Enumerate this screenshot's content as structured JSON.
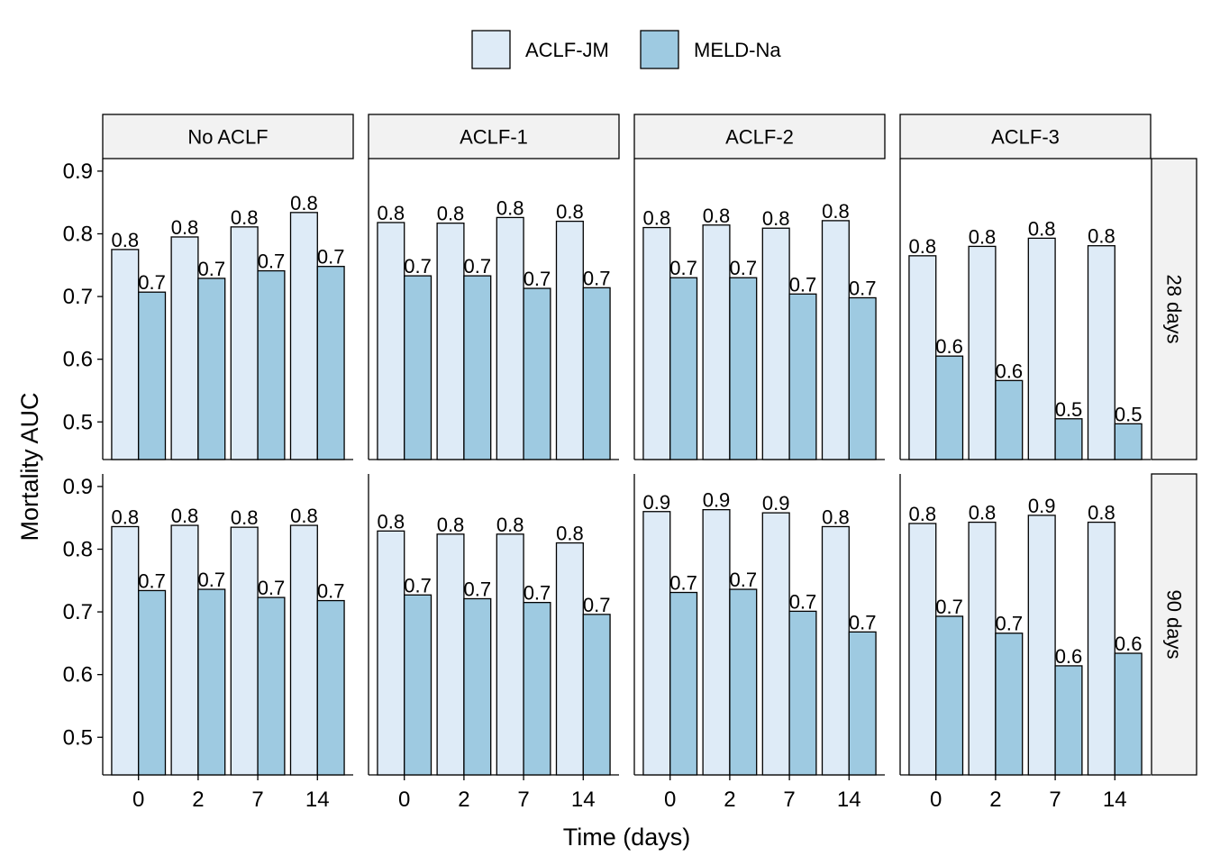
{
  "chart_data": {
    "type": "bar",
    "xlabel": "Time (days)",
    "ylabel": "Mortality AUC",
    "ylim": [
      0.44,
      0.92
    ],
    "yticks": [
      0.5,
      0.6,
      0.7,
      0.8,
      0.9
    ],
    "ytick_labels": [
      "0.5",
      "0.6",
      "0.7",
      "0.8",
      "0.9"
    ],
    "categories": [
      "0",
      "2",
      "7",
      "14"
    ],
    "facet_columns": [
      "No ACLF",
      "ACLF-1",
      "ACLF-2",
      "ACLF-3"
    ],
    "facet_rows": [
      "28 days",
      "90 days"
    ],
    "legend": {
      "position": "top",
      "items": [
        {
          "name": "ACLF-JM",
          "color": "#deebf7"
        },
        {
          "name": "MELD-Na",
          "color": "#9ecae1"
        }
      ]
    },
    "grid": false,
    "panels": [
      {
        "row": "28 days",
        "col": "No ACLF",
        "series": [
          {
            "name": "ACLF-JM",
            "values": [
              0.775,
              0.795,
              0.811,
              0.834
            ],
            "labels": [
              "0.8",
              "0.8",
              "0.8",
              "0.8"
            ]
          },
          {
            "name": "MELD-Na",
            "values": [
              0.707,
              0.729,
              0.741,
              0.748
            ],
            "labels": [
              "0.7",
              "0.7",
              "0.7",
              "0.7"
            ]
          }
        ]
      },
      {
        "row": "28 days",
        "col": "ACLF-1",
        "series": [
          {
            "name": "ACLF-JM",
            "values": [
              0.818,
              0.817,
              0.826,
              0.82
            ],
            "labels": [
              "0.8",
              "0.8",
              "0.8",
              "0.8"
            ]
          },
          {
            "name": "MELD-Na",
            "values": [
              0.733,
              0.733,
              0.713,
              0.714
            ],
            "labels": [
              "0.7",
              "0.7",
              "0.7",
              "0.7"
            ]
          }
        ]
      },
      {
        "row": "28 days",
        "col": "ACLF-2",
        "series": [
          {
            "name": "ACLF-JM",
            "values": [
              0.81,
              0.814,
              0.809,
              0.821
            ],
            "labels": [
              "0.8",
              "0.8",
              "0.8",
              "0.8"
            ]
          },
          {
            "name": "MELD-Na",
            "values": [
              0.73,
              0.73,
              0.704,
              0.698
            ],
            "labels": [
              "0.7",
              "0.7",
              "0.7",
              "0.7"
            ]
          }
        ]
      },
      {
        "row": "28 days",
        "col": "ACLF-3",
        "series": [
          {
            "name": "ACLF-JM",
            "values": [
              0.765,
              0.78,
              0.793,
              0.781
            ],
            "labels": [
              "0.8",
              "0.8",
              "0.8",
              "0.8"
            ]
          },
          {
            "name": "MELD-Na",
            "values": [
              0.605,
              0.566,
              0.505,
              0.497
            ],
            "labels": [
              "0.6",
              "0.6",
              "0.5",
              "0.5"
            ]
          }
        ]
      },
      {
        "row": "90 days",
        "col": "No ACLF",
        "series": [
          {
            "name": "ACLF-JM",
            "values": [
              0.836,
              0.838,
              0.835,
              0.838
            ],
            "labels": [
              "0.8",
              "0.8",
              "0.8",
              "0.8"
            ]
          },
          {
            "name": "MELD-Na",
            "values": [
              0.734,
              0.736,
              0.723,
              0.718
            ],
            "labels": [
              "0.7",
              "0.7",
              "0.7",
              "0.7"
            ]
          }
        ]
      },
      {
        "row": "90 days",
        "col": "ACLF-1",
        "series": [
          {
            "name": "ACLF-JM",
            "values": [
              0.829,
              0.824,
              0.824,
              0.81
            ],
            "labels": [
              "0.8",
              "0.8",
              "0.8",
              "0.8"
            ]
          },
          {
            "name": "MELD-Na",
            "values": [
              0.727,
              0.721,
              0.715,
              0.696
            ],
            "labels": [
              "0.7",
              "0.7",
              "0.7",
              "0.7"
            ]
          }
        ]
      },
      {
        "row": "90 days",
        "col": "ACLF-2",
        "series": [
          {
            "name": "ACLF-JM",
            "values": [
              0.86,
              0.863,
              0.858,
              0.836
            ],
            "labels": [
              "0.9",
              "0.9",
              "0.9",
              "0.8"
            ]
          },
          {
            "name": "MELD-Na",
            "values": [
              0.731,
              0.736,
              0.701,
              0.668
            ],
            "labels": [
              "0.7",
              "0.7",
              "0.7",
              "0.7"
            ]
          }
        ]
      },
      {
        "row": "90 days",
        "col": "ACLF-3",
        "series": [
          {
            "name": "ACLF-JM",
            "values": [
              0.841,
              0.843,
              0.854,
              0.843
            ],
            "labels": [
              "0.8",
              "0.8",
              "0.9",
              "0.8"
            ]
          },
          {
            "name": "MELD-Na",
            "values": [
              0.693,
              0.666,
              0.614,
              0.634
            ],
            "labels": [
              "0.7",
              "0.7",
              "0.6",
              "0.6"
            ]
          }
        ]
      }
    ]
  }
}
